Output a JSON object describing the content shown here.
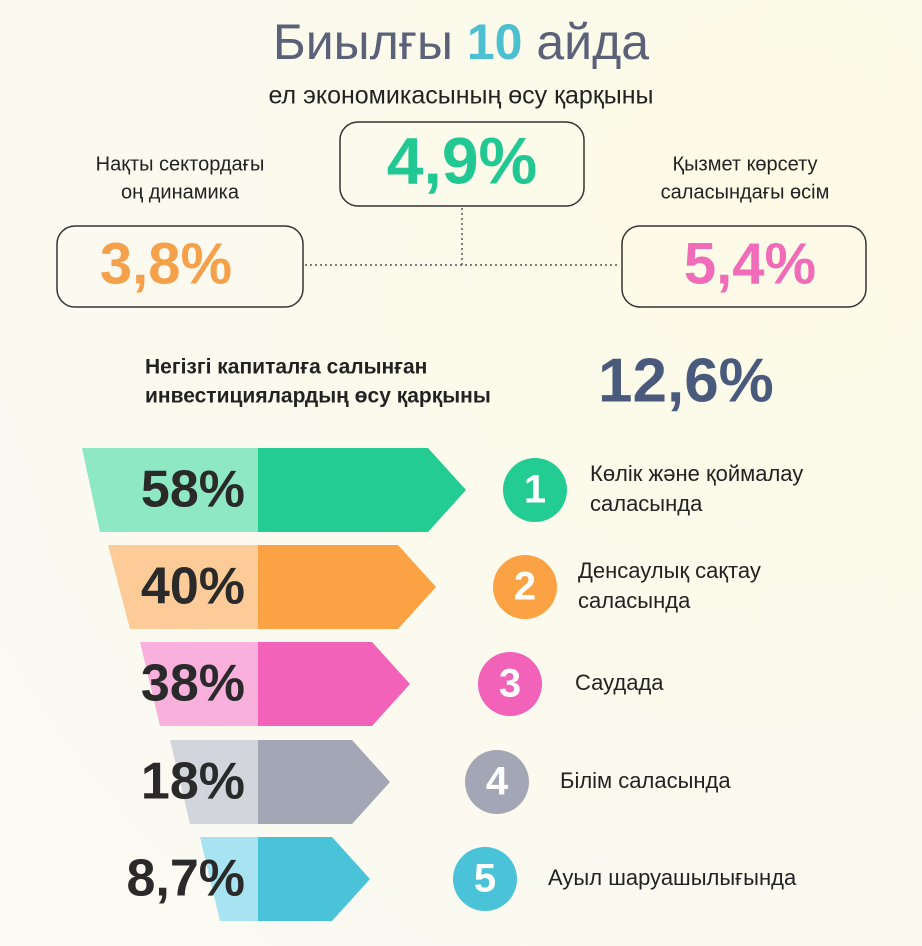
{
  "header": {
    "title": [
      "Биылғы",
      "10",
      "айда"
    ],
    "subtitle": "ел экономикасының өсу қарқыны"
  },
  "growth": {
    "center": {
      "value": "4,9%"
    },
    "left": {
      "label": [
        "Нақты сектордағы",
        "оң динамика"
      ],
      "value": "3,8%"
    },
    "right": {
      "label": [
        "Қызмет көрсету",
        "саласындағы өсім"
      ],
      "value": "5,4%"
    }
  },
  "investment": {
    "label": [
      "Негізгі капиталға салынған",
      "инвестициялардың өсу қарқыны"
    ],
    "value": "12,6%"
  },
  "sectors": [
    {
      "value": "58%",
      "rank": "1",
      "label": [
        "Көлік және қоймалау",
        "саласында"
      ]
    },
    {
      "value": "40%",
      "rank": "2",
      "label": [
        "Денсаулық сақтау",
        "саласында"
      ]
    },
    {
      "value": "38%",
      "rank": "3",
      "label": [
        "Саудада"
      ]
    },
    {
      "value": "18%",
      "rank": "4",
      "label": [
        "Білім саласында"
      ]
    },
    {
      "value": "8,7%",
      "rank": "5",
      "label": [
        "Ауыл шаруашылығында"
      ]
    }
  ]
}
